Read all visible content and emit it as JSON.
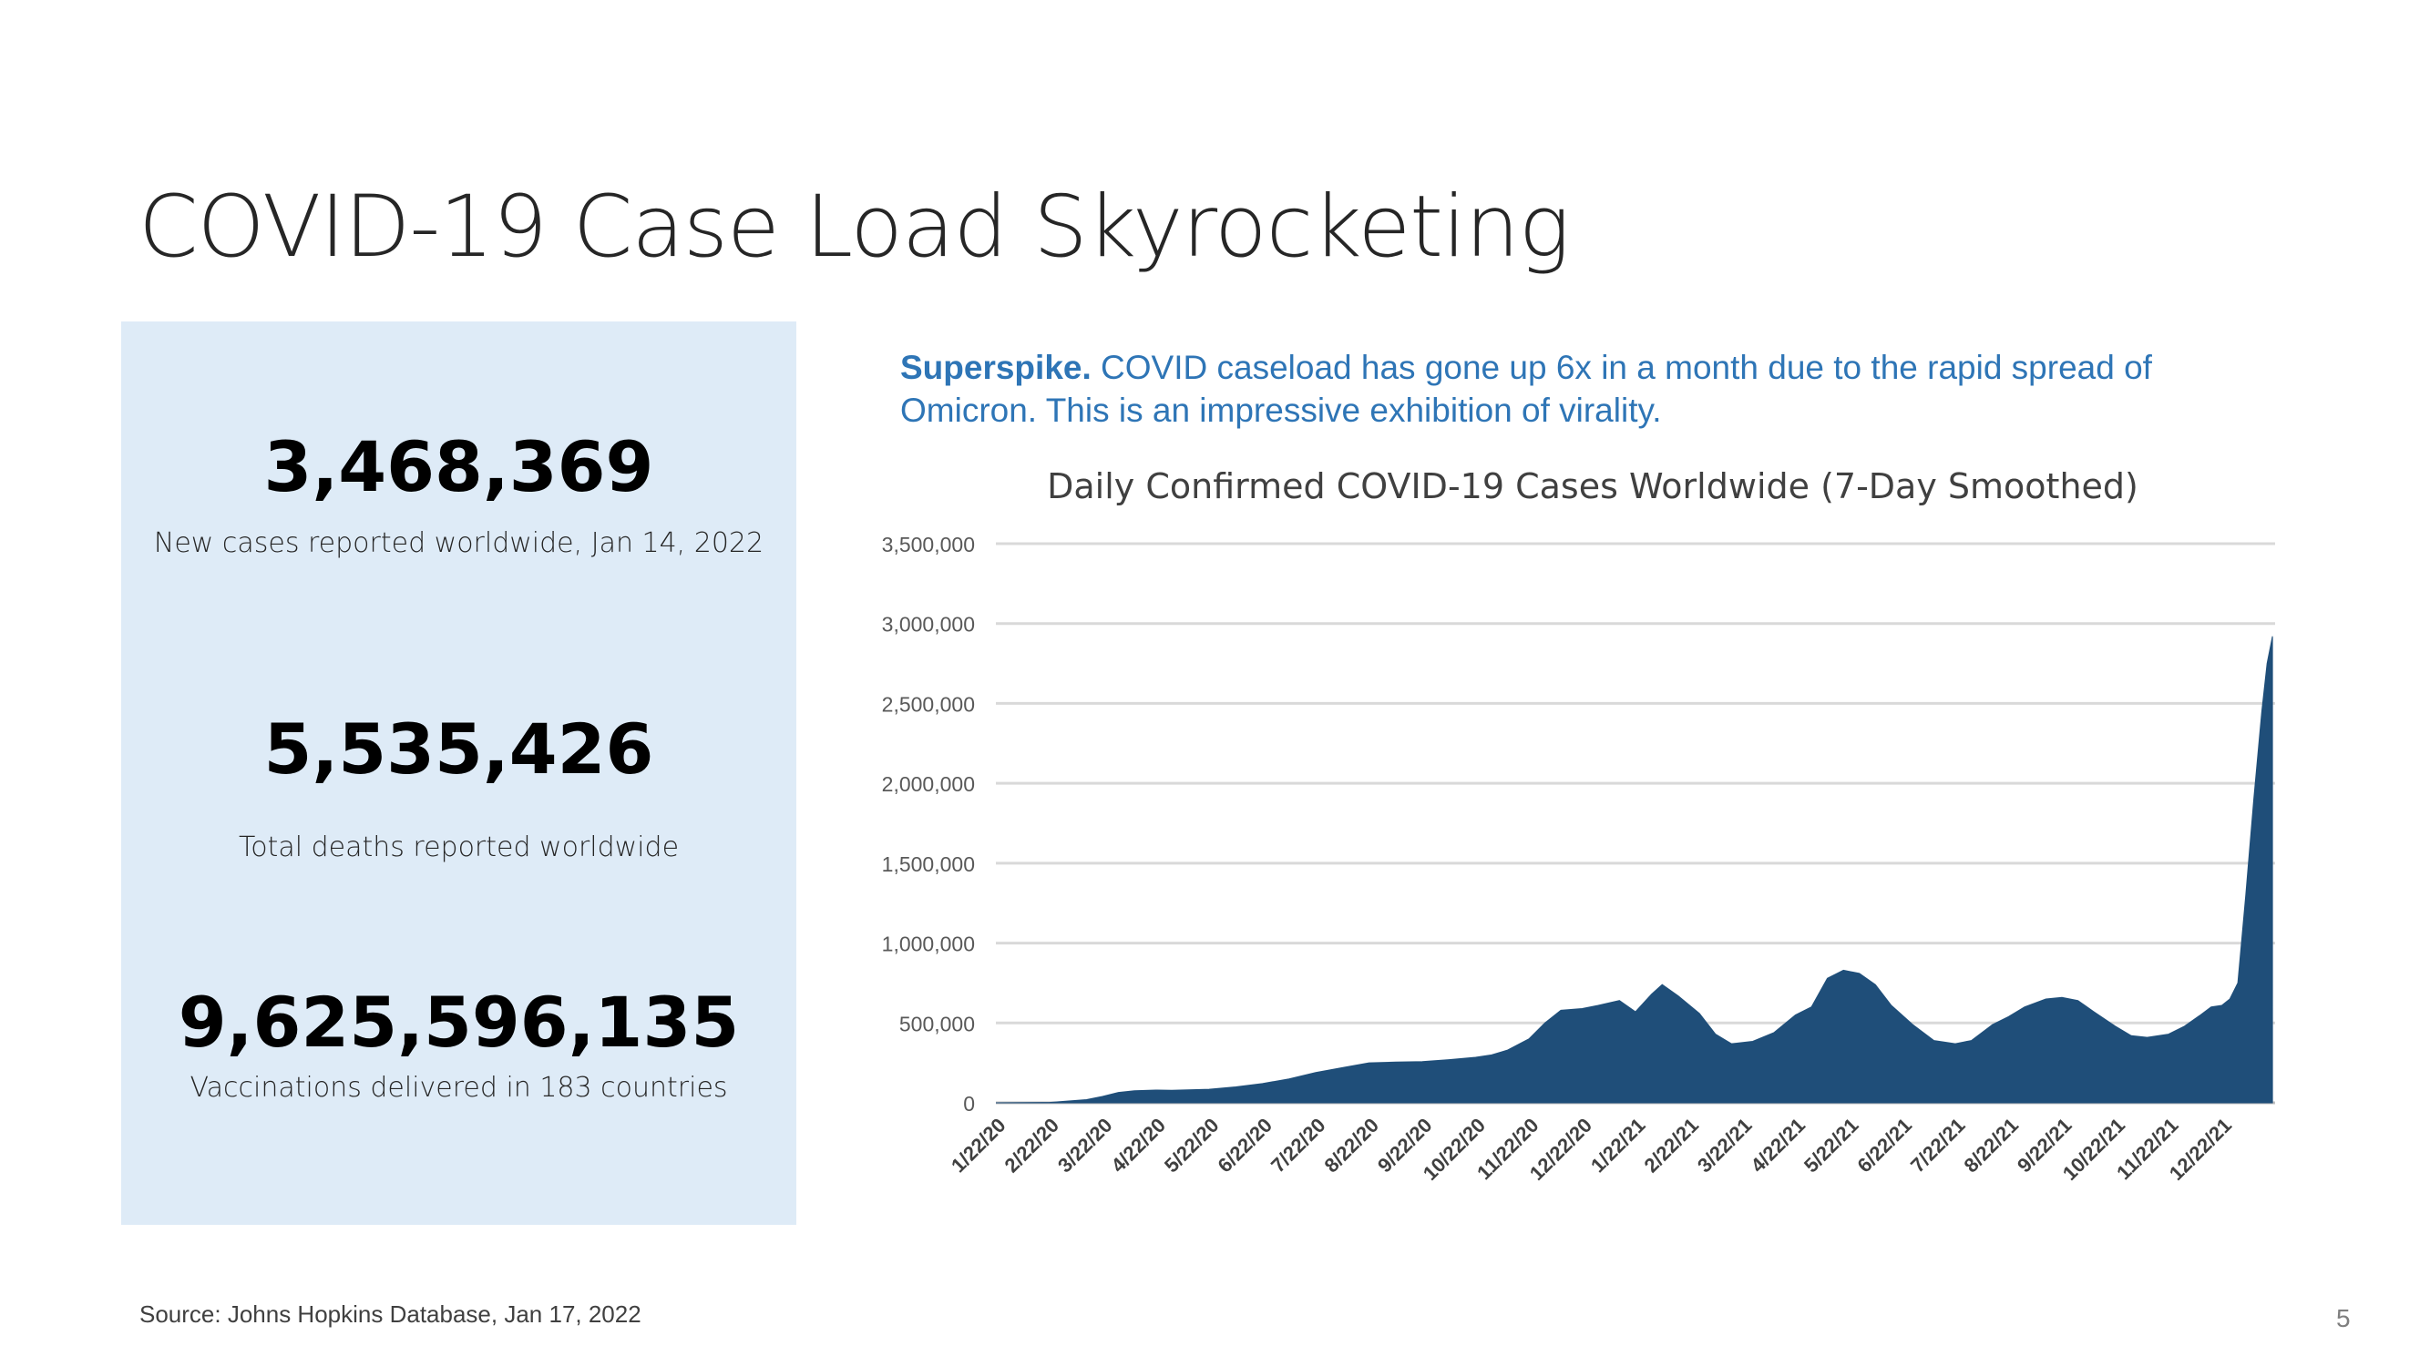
{
  "slide": {
    "title": "COVID-19 Case Load Skyrocketing",
    "source": "Source: Johns Hopkins Database, Jan 17, 2022",
    "page_number": "5"
  },
  "stats": [
    {
      "value": "3,468,369",
      "label": "New cases reported worldwide, Jan 14, 2022"
    },
    {
      "value": "5,535,426",
      "label": "Total deaths reported worldwide"
    },
    {
      "value": "9,625,596,135",
      "label": "Vaccinations delivered in 183 countries"
    }
  ],
  "callout": {
    "lead": "Superspike.",
    "text": " COVID caseload has gone up 6x in a month due to the rapid spread of Omicron. This is an impressive exhibition of virality."
  },
  "colors": {
    "area_fill": "#1f4e79",
    "gridline": "#d9d9d9",
    "panel": "#deebf7",
    "accent": "#2e75b6"
  },
  "chart_data": {
    "type": "area",
    "title": "Daily Confirmed COVID-19 Cases Worldwide (7-Day Smoothed)",
    "xlabel": "",
    "ylabel": "",
    "ylim": [
      0,
      3500000
    ],
    "y_ticks": [
      0,
      500000,
      1000000,
      1500000,
      2000000,
      2500000,
      3000000,
      3500000
    ],
    "y_tick_labels": [
      "0",
      "500,000",
      "1,000,000",
      "1,500,000",
      "2,000,000",
      "2,500,000",
      "3,000,000",
      "3,500,000"
    ],
    "x_tick_labels": [
      "1/22/20",
      "2/22/20",
      "3/22/20",
      "4/22/20",
      "5/22/20",
      "6/22/20",
      "7/22/20",
      "8/22/20",
      "9/22/20",
      "10/22/20",
      "11/22/20",
      "12/22/20",
      "1/22/21",
      "2/22/21",
      "3/22/21",
      "4/22/21",
      "5/22/21",
      "6/22/21",
      "7/22/21",
      "8/22/21",
      "9/22/21",
      "10/22/21",
      "11/22/21",
      "12/22/21"
    ],
    "grid": true,
    "legend": "none",
    "x_span_months": 24,
    "series": [
      {
        "name": "Daily confirmed cases (7-day smoothed)",
        "x_months": [
          0,
          1.0,
          1.7,
          2.0,
          2.3,
          2.6,
          3.0,
          3.3,
          4.0,
          4.5,
          5.0,
          5.5,
          6.0,
          6.5,
          7.0,
          7.5,
          8.0,
          8.5,
          9.0,
          9.3,
          9.6,
          10.0,
          10.3,
          10.6,
          11.0,
          11.3,
          11.7,
          12.0,
          12.3,
          12.5,
          12.8,
          13.2,
          13.5,
          13.8,
          14.2,
          14.6,
          15.0,
          15.3,
          15.6,
          15.9,
          16.2,
          16.5,
          16.8,
          17.2,
          17.6,
          18.0,
          18.3,
          18.7,
          19.0,
          19.3,
          19.7,
          20.0,
          20.3,
          20.6,
          21.0,
          21.3,
          21.6,
          22.0,
          22.3,
          22.6,
          22.8,
          23.0,
          23.15,
          23.3,
          23.45,
          23.6,
          23.75,
          23.85,
          23.95
        ],
        "values": [
          0,
          2000,
          20000,
          40000,
          65000,
          75000,
          80000,
          78000,
          85000,
          100000,
          120000,
          150000,
          190000,
          220000,
          250000,
          255000,
          258000,
          270000,
          285000,
          300000,
          330000,
          400000,
          500000,
          580000,
          590000,
          610000,
          640000,
          570000,
          680000,
          740000,
          670000,
          560000,
          430000,
          370000,
          385000,
          440000,
          550000,
          600000,
          780000,
          830000,
          810000,
          740000,
          610000,
          490000,
          390000,
          370000,
          390000,
          490000,
          540000,
          600000,
          650000,
          660000,
          640000,
          570000,
          480000,
          420000,
          410000,
          430000,
          480000,
          550000,
          600000,
          610000,
          650000,
          750000,
          1300000,
          1900000,
          2450000,
          2750000,
          2920000
        ]
      }
    ]
  }
}
